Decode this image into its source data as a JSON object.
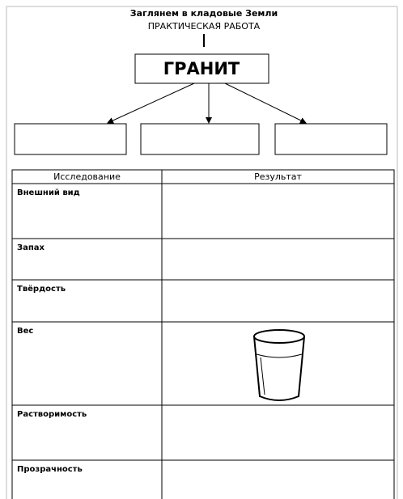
{
  "header": {
    "title": "Заглянем в кладовые Земли",
    "subtitle": "ПРАКТИЧЕСКАЯ РАБОТА"
  },
  "diagram": {
    "main": "ГРАНИТ"
  },
  "table": {
    "columns": [
      "Исследование",
      "Результат"
    ],
    "rows": [
      "Внешний вид",
      "Запах",
      "Твёрдость",
      "Вес",
      "Растворимость",
      "Прозрачность"
    ]
  }
}
